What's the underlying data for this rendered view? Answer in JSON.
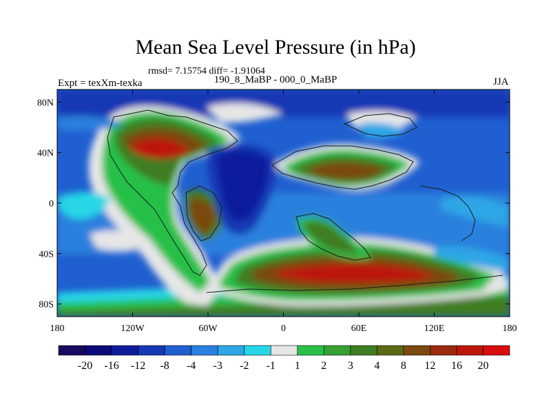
{
  "title": "Mean Sea Level Pressure (in hPa)",
  "stats": "rmsd= 7.15754 diff= -1.91064",
  "left_label": "Expt = texXm-texka",
  "center_label": "190_8_MaBP - 000_0_MaBP",
  "right_label": "JJA",
  "x_ticks": [
    "180",
    "120W",
    "60W",
    "0",
    "60E",
    "120E",
    "180"
  ],
  "y_ticks": [
    "80N",
    "40N",
    "0",
    "40S",
    "80S"
  ],
  "colorbar": {
    "labels": [
      "-20",
      "-16",
      "-12",
      "-8",
      "-4",
      "-3",
      "-2",
      "-1",
      "1",
      "2",
      "3",
      "4",
      "8",
      "12",
      "16",
      "20"
    ],
    "colors": [
      "#1a0a5e",
      "#0a0a7a",
      "#0f1d9c",
      "#1538b4",
      "#1f5fd0",
      "#2a80dd",
      "#2ea6e6",
      "#27d6e6",
      "#e6e6e6",
      "#28c048",
      "#36a032",
      "#3f7d22",
      "#5a6a14",
      "#7a4a10",
      "#9c2a0c",
      "#bc160a",
      "#d80e0e"
    ]
  }
}
